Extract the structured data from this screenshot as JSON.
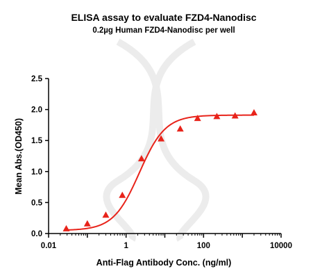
{
  "chart_data": {
    "type": "scatter",
    "title": "ELISA assay to evaluate FZD4-Nanodisc",
    "subtitle": "0.2µg Human FZD4-Nanodisc per well",
    "xlabel": "Anti-Flag Antibody Conc. (ng/ml)",
    "ylabel": "Mean Abs.(OD450)",
    "x_scale": "log",
    "xlim": [
      0.01,
      10000
    ],
    "ylim": [
      0,
      2.5
    ],
    "x_ticks": [
      0.01,
      1,
      100,
      10000
    ],
    "x_tick_labels": [
      "0.01",
      "1",
      "100",
      "10000"
    ],
    "y_ticks": [
      0,
      0.5,
      1,
      1.5,
      2,
      2.5
    ],
    "y_tick_labels": [
      "0.0",
      "0.5",
      "1.0",
      "1.5",
      "2.0",
      "2.5"
    ],
    "grid": false,
    "series": [
      {
        "marker": "triangle",
        "color": "#e8231a",
        "x": [
          0.0286,
          0.1,
          0.3,
          0.8,
          2.5,
          8,
          25,
          70,
          220,
          650,
          2000
        ],
        "y": [
          0.08,
          0.16,
          0.3,
          0.62,
          1.21,
          1.53,
          1.69,
          1.86,
          1.89,
          1.9,
          1.95
        ]
      }
    ],
    "fit_curve": {
      "color": "#e8231a",
      "bottom": 0.05,
      "top": 1.91,
      "ec50": 2.2,
      "hill": 1.3
    }
  }
}
